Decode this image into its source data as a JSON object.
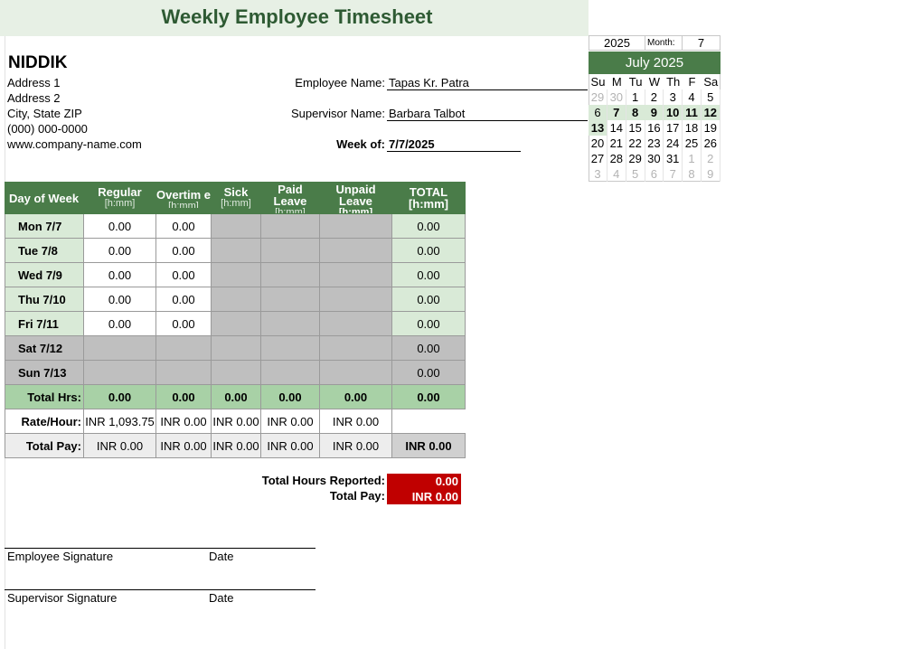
{
  "title": "Weekly Employee Timesheet",
  "company": {
    "name": "NIDDIK",
    "address1": "Address 1",
    "address2": "Address 2",
    "city": "City, State  ZIP",
    "phone": "(000) 000-0000",
    "web": "www.company-name.com"
  },
  "employee": {
    "name_label": "Employee Name:",
    "name_value": "Tapas Kr. Patra",
    "supervisor_label": "Supervisor Name:",
    "supervisor_value": "Barbara Talbot",
    "week_label": "Week of:",
    "week_value": "7/7/2025"
  },
  "calendar": {
    "year": "2025",
    "month_label": "Month:",
    "month": "7",
    "title": "July 2025",
    "days_header": [
      "Su",
      "M",
      "Tu",
      "W",
      "Th",
      "F",
      "Sa"
    ],
    "weeks": [
      [
        "29",
        "30",
        "1",
        "2",
        "3",
        "4",
        "5"
      ],
      [
        "6",
        "7",
        "8",
        "9",
        "10",
        "11",
        "12"
      ],
      [
        "13",
        "14",
        "15",
        "16",
        "17",
        "18",
        "19"
      ],
      [
        "20",
        "21",
        "22",
        "23",
        "24",
        "25",
        "26"
      ],
      [
        "27",
        "28",
        "29",
        "30",
        "31",
        "1",
        "2"
      ],
      [
        "3",
        "4",
        "5",
        "6",
        "7",
        "8",
        "9"
      ]
    ]
  },
  "table": {
    "headers": [
      {
        "main": "Day of Week",
        "sub": ""
      },
      {
        "main": "Regular",
        "sub": "[h:mm]"
      },
      {
        "main": "Overtim e",
        "sub": "[h:mm]"
      },
      {
        "main": "Sick",
        "sub": "[h:mm]"
      },
      {
        "main": "Paid Leave",
        "sub": "[h:mm]"
      },
      {
        "main": "Unpaid Leave",
        "sub": "[h:mm]"
      },
      {
        "main": "TOTAL",
        "sub": "[h:mm]"
      }
    ],
    "rows": [
      {
        "day": "Mon 7/7",
        "regular": "0.00",
        "overtime": "0.00",
        "total": "0.00"
      },
      {
        "day": "Tue 7/8",
        "regular": "0.00",
        "overtime": "0.00",
        "total": "0.00"
      },
      {
        "day": "Wed 7/9",
        "regular": "0.00",
        "overtime": "0.00",
        "total": "0.00"
      },
      {
        "day": "Thu 7/10",
        "regular": "0.00",
        "overtime": "0.00",
        "total": "0.00"
      },
      {
        "day": "Fri 7/11",
        "regular": "0.00",
        "overtime": "0.00",
        "total": "0.00"
      },
      {
        "day": "Sat 7/12",
        "total": "0.00"
      },
      {
        "day": "Sun 7/13",
        "total": "0.00"
      }
    ],
    "total_hrs": {
      "label": "Total Hrs:",
      "regular": "0.00",
      "overtime": "0.00",
      "sick": "0.00",
      "paid": "0.00",
      "unpaid": "0.00",
      "total": "0.00"
    },
    "rate": {
      "label": "Rate/Hour:",
      "regular": "INR 1,093.75",
      "overtime": "INR 0.00",
      "sick": "INR 0.00",
      "paid": "INR 0.00",
      "unpaid": "INR 0.00"
    },
    "total_pay": {
      "label": "Total Pay:",
      "regular": "INR 0.00",
      "overtime": "INR 0.00",
      "sick": "INR 0.00",
      "paid": "INR 0.00",
      "unpaid": "INR 0.00",
      "total": "INR 0.00"
    }
  },
  "summary": {
    "hours_label": "Total Hours Reported:",
    "hours_value": "0.00",
    "pay_label": "Total Pay:",
    "pay_value": "INR 0.00"
  },
  "signatures": {
    "employee": "Employee Signature",
    "supervisor": "Supervisor Signature",
    "date": "Date"
  },
  "colors": {
    "header_green": "#4a7c49",
    "light_green": "#d9ead7",
    "sum_green": "#a8d1a6",
    "grey": "#bfbfbf",
    "red": "#c00000",
    "title_green": "#2e5a33"
  }
}
